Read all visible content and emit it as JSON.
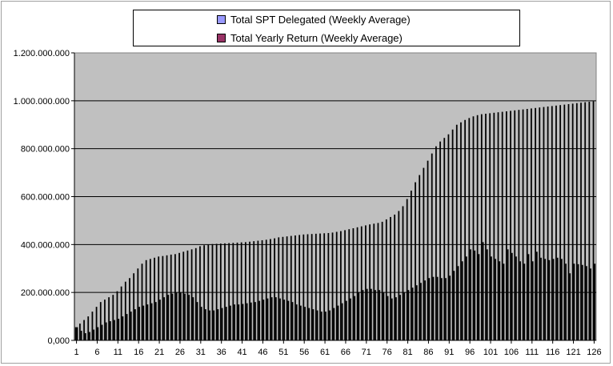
{
  "chart_data": {
    "type": "bar",
    "categories_count": 126,
    "y_ticks": [
      "0,000",
      "200.000.000",
      "400.000.000",
      "600.000.000",
      "800.000.000",
      "1.000.000.000",
      "1.200.000.000"
    ],
    "x_ticks": [
      1,
      6,
      11,
      16,
      21,
      26,
      31,
      36,
      41,
      46,
      51,
      56,
      61,
      66,
      71,
      76,
      81,
      86,
      91,
      96,
      101,
      106,
      111,
      116,
      121,
      126
    ],
    "ylim": [
      0,
      1200000000
    ],
    "grid": true,
    "legend_position": "top",
    "plot_background": "#c0c0c0",
    "series": [
      {
        "name": "Total SPT Delegated (Weekly Average)",
        "color": "#9999ff",
        "values": [
          55000000,
          70000000,
          85000000,
          100000000,
          120000000,
          140000000,
          160000000,
          170000000,
          180000000,
          190000000,
          205000000,
          225000000,
          245000000,
          260000000,
          280000000,
          300000000,
          320000000,
          335000000,
          340000000,
          345000000,
          350000000,
          352000000,
          355000000,
          358000000,
          360000000,
          365000000,
          370000000,
          375000000,
          380000000,
          385000000,
          393000000,
          397000000,
          400000000,
          402000000,
          403000000,
          404000000,
          405000000,
          406000000,
          407000000,
          408000000,
          409000000,
          410000000,
          412000000,
          414000000,
          416000000,
          418000000,
          420000000,
          423000000,
          426000000,
          430000000,
          432000000,
          434000000,
          436000000,
          438000000,
          440000000,
          442000000,
          443000000,
          444000000,
          445000000,
          446000000,
          447000000,
          448000000,
          450000000,
          453000000,
          456000000,
          460000000,
          464000000,
          468000000,
          472000000,
          476000000,
          480000000,
          484000000,
          487000000,
          490000000,
          495000000,
          505000000,
          515000000,
          525000000,
          540000000,
          560000000,
          590000000,
          625000000,
          660000000,
          690000000,
          720000000,
          750000000,
          780000000,
          810000000,
          830000000,
          845000000,
          860000000,
          880000000,
          900000000,
          910000000,
          920000000,
          928000000,
          935000000,
          940000000,
          944000000,
          946000000,
          948000000,
          950000000,
          952000000,
          954000000,
          956000000,
          958000000,
          960000000,
          962000000,
          964000000,
          966000000,
          968000000,
          970000000,
          972000000,
          974000000,
          976000000,
          978000000,
          980000000,
          982000000,
          984000000,
          986000000,
          988000000,
          990000000,
          992000000,
          994000000,
          996000000,
          998000000
        ]
      },
      {
        "name": "Total Yearly Return (Weekly Average)",
        "color": "#993366",
        "values": [
          55000000,
          40000000,
          30000000,
          35000000,
          45000000,
          55000000,
          65000000,
          75000000,
          80000000,
          85000000,
          90000000,
          100000000,
          110000000,
          120000000,
          130000000,
          140000000,
          145000000,
          150000000,
          155000000,
          160000000,
          170000000,
          180000000,
          190000000,
          195000000,
          200000000,
          200000000,
          195000000,
          190000000,
          180000000,
          160000000,
          140000000,
          130000000,
          125000000,
          125000000,
          130000000,
          135000000,
          140000000,
          145000000,
          150000000,
          150000000,
          152000000,
          155000000,
          158000000,
          160000000,
          165000000,
          170000000,
          175000000,
          180000000,
          180000000,
          175000000,
          170000000,
          165000000,
          160000000,
          150000000,
          145000000,
          140000000,
          135000000,
          130000000,
          125000000,
          120000000,
          120000000,
          125000000,
          135000000,
          145000000,
          155000000,
          165000000,
          175000000,
          185000000,
          200000000,
          210000000,
          215000000,
          215000000,
          210000000,
          210000000,
          200000000,
          185000000,
          175000000,
          180000000,
          190000000,
          200000000,
          210000000,
          220000000,
          230000000,
          240000000,
          250000000,
          260000000,
          265000000,
          265000000,
          260000000,
          260000000,
          270000000,
          290000000,
          310000000,
          330000000,
          350000000,
          380000000,
          375000000,
          360000000,
          410000000,
          380000000,
          350000000,
          340000000,
          330000000,
          320000000,
          380000000,
          365000000,
          350000000,
          330000000,
          320000000,
          360000000,
          330000000,
          370000000,
          345000000,
          340000000,
          335000000,
          340000000,
          345000000,
          340000000,
          320000000,
          280000000,
          320000000,
          318000000,
          315000000,
          310000000,
          300000000,
          320000000
        ]
      }
    ]
  }
}
